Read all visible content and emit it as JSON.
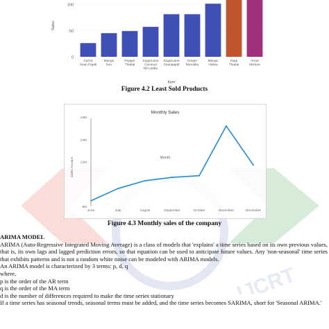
{
  "chart_data": [
    {
      "type": "bar",
      "categories": [
        "Carrot\nSoan Papdi",
        "Mango\nbun",
        "Pepper\nThattai",
        "Sugarcane\nCoconut\nDil Laddu",
        "Sugarcane\nSoanpapdi",
        "Ginger\nMurukku",
        "Mango\nHalwa",
        "Ragi\nThattai",
        "Aroot\nMixture"
      ],
      "values": [
        26,
        45,
        49,
        57,
        81,
        81,
        101,
        112,
        112
      ],
      "colors": [
        "#3f4fb5",
        "#3f4fb5",
        "#3f4fb5",
        "#3f4fb5",
        "#3f4fb5",
        "#3f4fb5",
        "#3f4fb5",
        "#c0552f",
        "#a1317a"
      ],
      "title": "",
      "xlabel": "Item",
      "ylabel": "Sales",
      "ylim": [
        0,
        108
      ],
      "yticks": [
        "0",
        "50",
        "100"
      ]
    },
    {
      "type": "line",
      "title": "Monthly Sales",
      "categories": [
        "June",
        "July",
        "August",
        "September",
        "October",
        "November",
        "December"
      ],
      "values": [
        8.5,
        9.6,
        10.3,
        10.6,
        10.75,
        15.2,
        11.7
      ],
      "xlabel": "Month",
      "ylabel": "Sales Amount",
      "ylim": [
        8,
        16
      ],
      "yticks": [
        "8M",
        "12M",
        "14M",
        "16M"
      ],
      "line_color": "#1f8ad8"
    }
  ],
  "captions": {
    "fig42": "Figure 4.2 Least Sold Products",
    "fig43": "Figure 4.3 Monthly sales of the company"
  },
  "body": {
    "heading": "ARIMA MODEL",
    "p1": "ARIMA (Auto-Regressive Integrated Moving Average) is a class of models that 'explains' a time series based on its own previous values, that is, its own lags and lagged prediction errors, so that equation can be used to anticipate future values. Any 'non-seasonal' time series that exhibits patterns and is not a random white noise can be modeled with ARIMA models.",
    "p2": "An ARIMA model is characterized by 3 terms: p, d, q",
    "p3": "where,",
    "p4": "p is the order of the AR term",
    "p5": "q is the order of the MA term",
    "p6": "d is the number of differences required to make the time series stationary",
    "p7": "If a time series has seasonal trends, seasonal terms must be added, and the time series becomes SARIMA, short for 'Seasonal ARIMA.'"
  },
  "watermark": {
    "text": "IJCRT",
    "colors": [
      "#e84b3c",
      "#2e9a3d",
      "#2b4ea8"
    ]
  }
}
